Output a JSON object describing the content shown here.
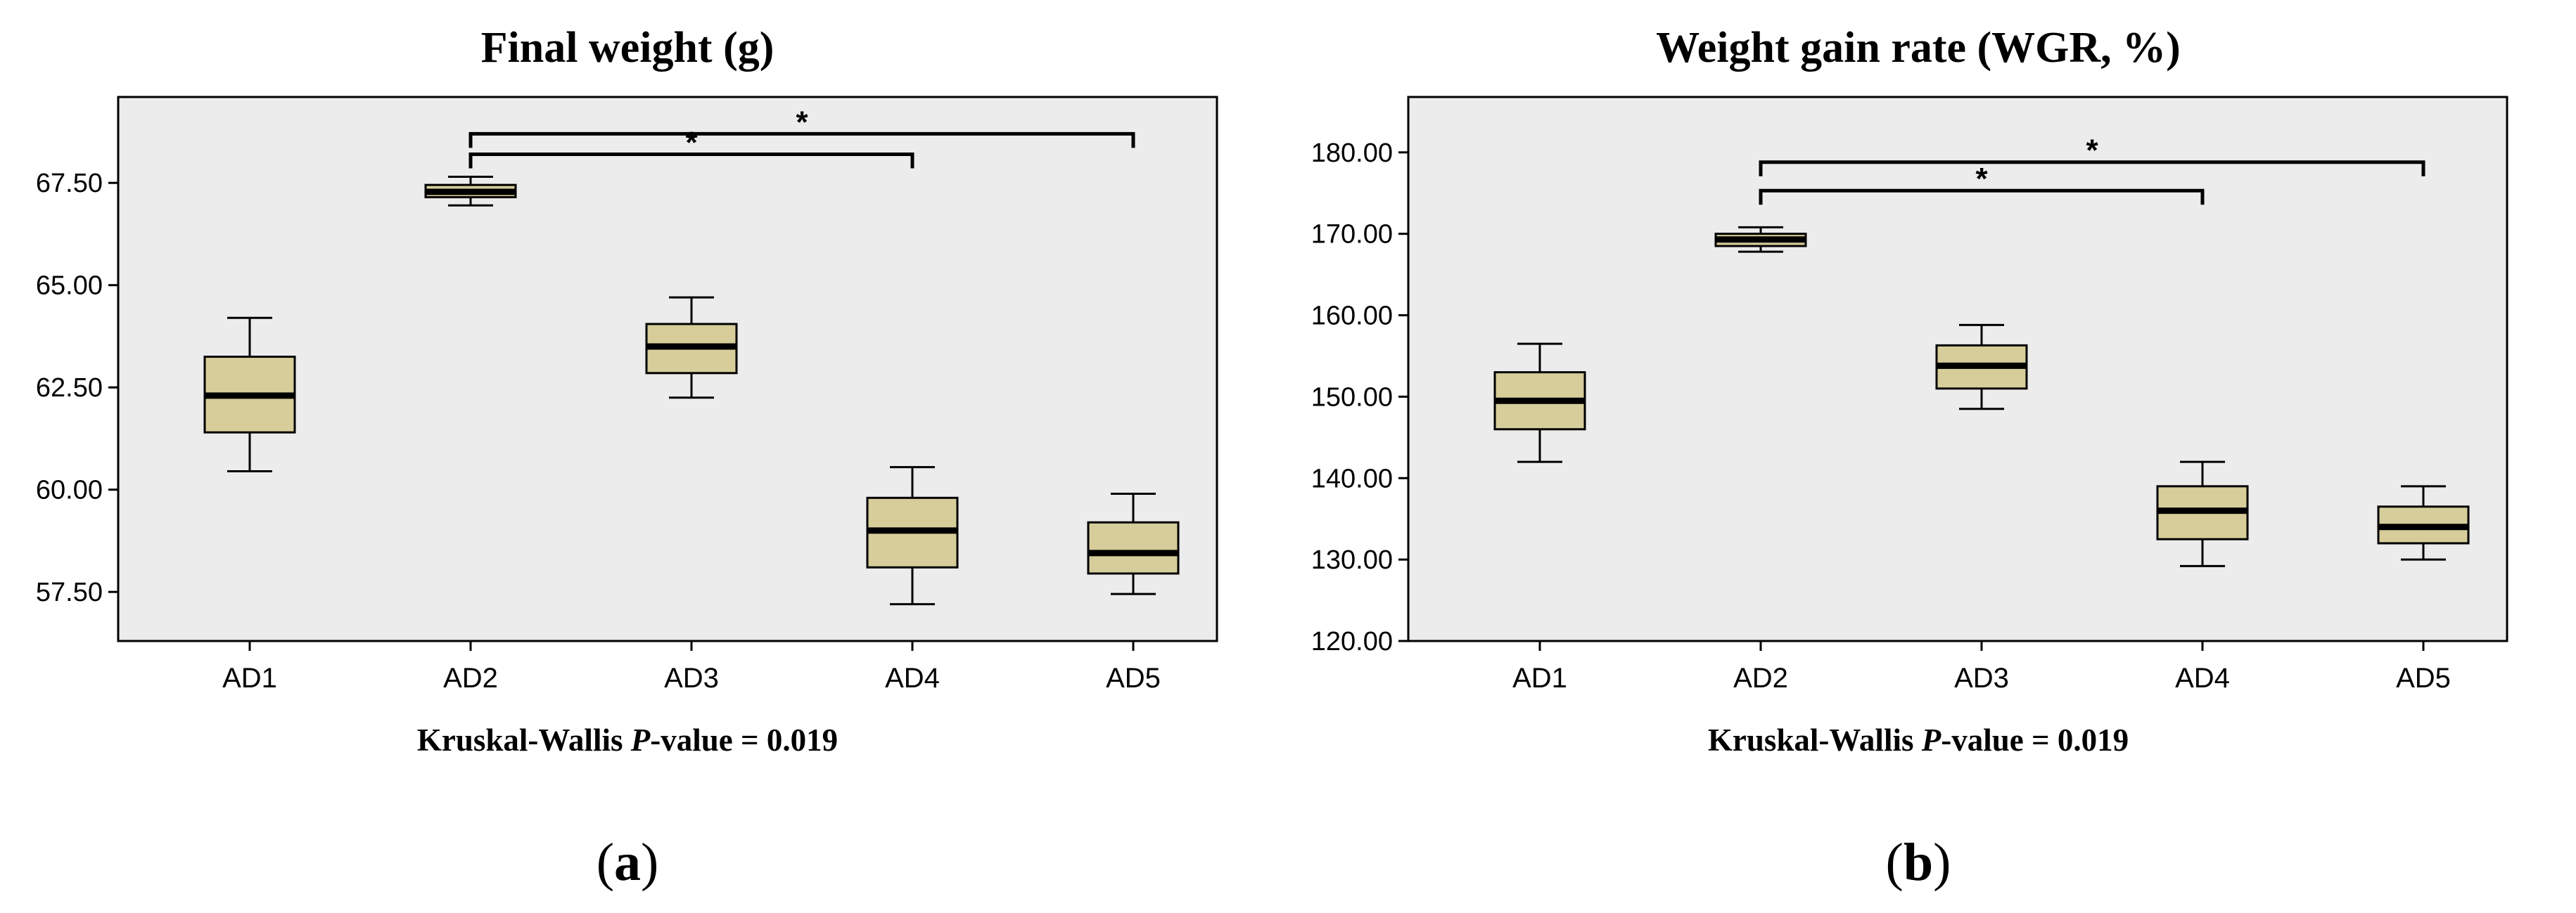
{
  "colors": {
    "plot_bg": "#ececec",
    "box_fill": "#d6cd9a",
    "stroke": "#000000"
  },
  "chart_data": [
    {
      "type": "boxplot",
      "title": "Final weight (g)",
      "categories": [
        "AD1",
        "AD2",
        "AD3",
        "AD4",
        "AD5"
      ],
      "ylim": [
        56.3,
        69.6
      ],
      "yticks": [
        57.5,
        60.0,
        62.5,
        65.0,
        67.5
      ],
      "ytick_labels": [
        "57.50",
        "60.00",
        "62.50",
        "65.00",
        "67.50"
      ],
      "boxes": [
        {
          "min": 60.45,
          "q1": 61.4,
          "median": 62.3,
          "q3": 63.25,
          "max": 64.2
        },
        {
          "min": 66.95,
          "q1": 67.15,
          "median": 67.28,
          "q3": 67.45,
          "max": 67.65
        },
        {
          "min": 62.25,
          "q1": 62.85,
          "median": 63.5,
          "q3": 64.05,
          "max": 64.7
        },
        {
          "min": 57.2,
          "q1": 58.1,
          "median": 59.0,
          "q3": 59.8,
          "max": 60.55
        },
        {
          "min": 57.45,
          "q1": 57.95,
          "median": 58.45,
          "q3": 59.2,
          "max": 59.9
        }
      ],
      "brackets": [
        {
          "from": "AD2",
          "to": "AD4",
          "y": 68.2,
          "label": "*"
        },
        {
          "from": "AD2",
          "to": "AD5",
          "y": 68.7,
          "label": "*"
        }
      ],
      "note_prefix": "Kruskal-Wallis ",
      "note_italic": "P",
      "note_suffix": "-value = 0.019",
      "panel_label_open": "(",
      "panel_label": "a",
      "panel_label_close": ")"
    },
    {
      "type": "boxplot",
      "title": "Weight gain rate (WGR, %)",
      "categories": [
        "AD1",
        "AD2",
        "AD3",
        "AD4",
        "AD5"
      ],
      "ylim": [
        120.0,
        186.8
      ],
      "yticks": [
        120.0,
        130.0,
        140.0,
        150.0,
        160.0,
        170.0,
        180.0
      ],
      "ytick_labels": [
        "120.00",
        "130.00",
        "140.00",
        "150.00",
        "160.00",
        "170.00",
        "180.00"
      ],
      "boxes": [
        {
          "min": 142.0,
          "q1": 146.0,
          "median": 149.5,
          "q3": 153.0,
          "max": 156.5
        },
        {
          "min": 167.8,
          "q1": 168.5,
          "median": 169.3,
          "q3": 170.0,
          "max": 170.8
        },
        {
          "min": 148.5,
          "q1": 151.0,
          "median": 153.8,
          "q3": 156.3,
          "max": 158.8
        },
        {
          "min": 129.2,
          "q1": 132.5,
          "median": 136.0,
          "q3": 139.0,
          "max": 142.0
        },
        {
          "min": 130.0,
          "q1": 132.0,
          "median": 134.0,
          "q3": 136.5,
          "max": 139.0
        }
      ],
      "brackets": [
        {
          "from": "AD2",
          "to": "AD4",
          "y": 175.3,
          "label": "*"
        },
        {
          "from": "AD2",
          "to": "AD5",
          "y": 178.8,
          "label": "*"
        }
      ],
      "note_prefix": "Kruskal-Wallis ",
      "note_italic": "P",
      "note_suffix": "-value = 0.019",
      "panel_label_open": "(",
      "panel_label": "b",
      "panel_label_close": ")"
    }
  ]
}
